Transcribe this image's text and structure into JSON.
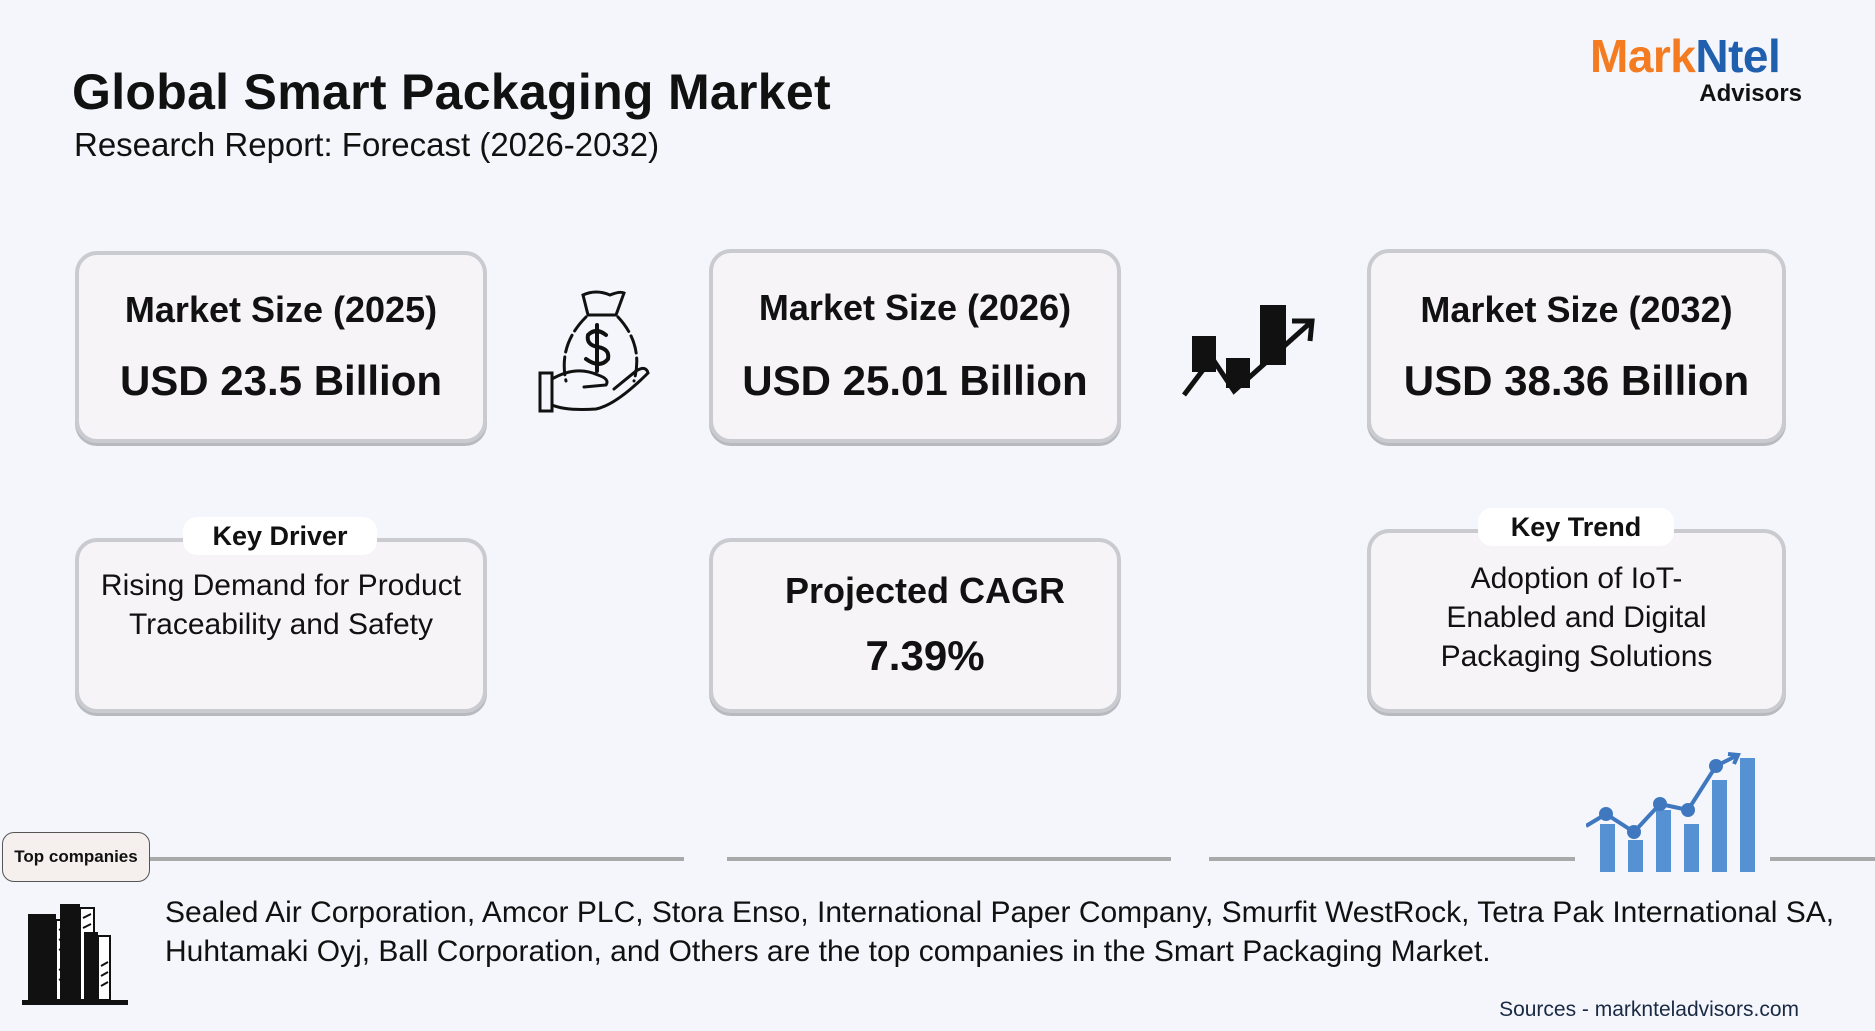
{
  "header": {
    "title": "Global Smart Packaging Market",
    "subtitle": "Research Report: Forecast (2026-2032)"
  },
  "logo": {
    "part1": "Mark",
    "part2": "Ntel",
    "part3": "Advisors",
    "colors": {
      "orange": "#f47b20",
      "blue": "#1f5fae"
    }
  },
  "cards": [
    {
      "heading": "Market Size (2025)",
      "value": "USD 23.5 Billion"
    },
    {
      "heading": "Market Size (2026)",
      "value": "USD 25.01 Billion"
    },
    {
      "heading": "Market Size (2032)",
      "value": "USD 38.36 Billion"
    }
  ],
  "key_driver": {
    "label": "Key Driver",
    "text": "Rising Demand for Product Traceability and Safety"
  },
  "cagr": {
    "label": "Projected CAGR",
    "value": "7.39%"
  },
  "key_trend": {
    "label": "Key Trend",
    "text": "Adoption of IoT-Enabled and Digital Packaging Solutions"
  },
  "companies": {
    "label": "Top companies",
    "text": "Sealed Air Corporation, Amcor PLC, Stora Enso, International Paper Company, Smurfit WestRock, Tetra Pak International SA, Huhtamaki Oyj, Ball Corporation, and Others are the top companies in the Smart Packaging Market."
  },
  "sources": "Sources - marknteladvisors.com",
  "icons": [
    "money-bag-hand-icon",
    "trend-up-icon",
    "bar-chart-growth-icon",
    "buildings-icon"
  ]
}
